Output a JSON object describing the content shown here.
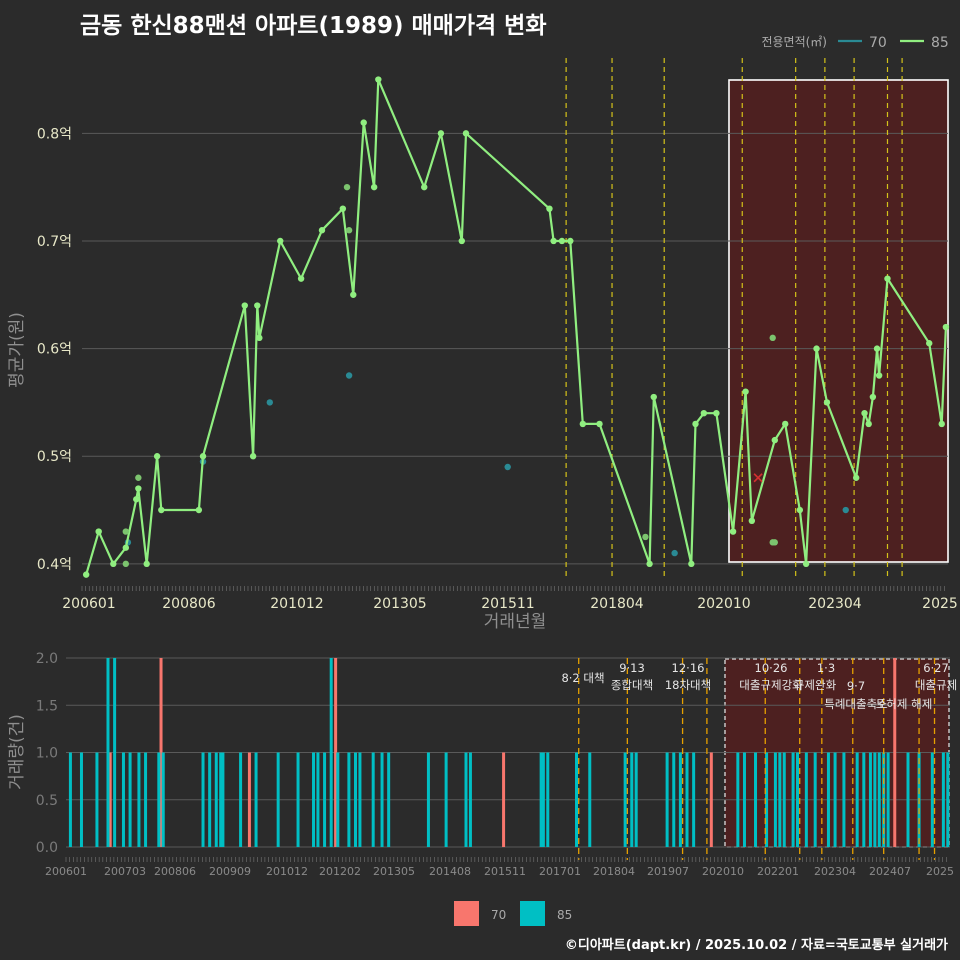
{
  "header": {
    "title": "금동 한신88맨션 아파트(1989) 매매가격 변화",
    "credit": "©디아파트(dapt.kr) / 2025.10.02 / 자료=국토교통부 실거래가"
  },
  "colors": {
    "s70": "#2a8a94",
    "s85": "#90ee80",
    "bar70": "#f8766d",
    "bar85": "#00bfc4",
    "policy": "#d4c21a"
  },
  "chart_data": [
    {
      "type": "line",
      "title": "금동 한신88맨션 아파트(1989) 매매가격 변화",
      "xlabel": "거래년월",
      "ylabel": "평균가(원)",
      "ylim": [
        0.385,
        0.87
      ],
      "x_tick_labels": [
        "200601",
        "200806",
        "201012",
        "201305",
        "201511",
        "201804",
        "202010",
        "202304",
        "2025"
      ],
      "y_tick_labels": [
        "0.4억",
        "0.5억",
        "0.6억",
        "0.7억",
        "0.8억"
      ],
      "y_ticks": [
        0.4,
        0.5,
        0.6,
        0.7,
        0.8
      ],
      "legend_title": "전용면적(㎡)",
      "legend": [
        "70",
        "85"
      ],
      "highlight_box": {
        "x_from": 2020.85,
        "x_to": 2025.5
      },
      "marker_x": {
        "x": 2022.2,
        "y": 0.48
      },
      "policy_lines": [
        2017.6,
        2018.7,
        2019.95,
        2021.82,
        2023.1,
        2023.8,
        2024.5,
        2025.3,
        2025.65
      ],
      "series": [
        {
          "name": "70",
          "points": [
            [
              2007.1,
              0.42
            ],
            [
              2008.9,
              0.495
            ],
            [
              2010.5,
              0.55
            ],
            [
              2012.4,
              0.575
            ],
            [
              2016.2,
              0.49
            ],
            [
              2020.2,
              0.41
            ],
            [
              2024.3,
              0.45
            ]
          ]
        },
        {
          "name": "85",
          "line": [
            [
              2006.1,
              0.39
            ],
            [
              2006.4,
              0.43
            ],
            [
              2006.75,
              0.4
            ],
            [
              2007.05,
              0.415
            ],
            [
              2007.3,
              0.46
            ],
            [
              2007.35,
              0.47
            ],
            [
              2007.55,
              0.4
            ],
            [
              2007.8,
              0.5
            ],
            [
              2007.9,
              0.45
            ],
            [
              2008.8,
              0.45
            ],
            [
              2008.9,
              0.5
            ],
            [
              2009.9,
              0.64
            ],
            [
              2010.1,
              0.5
            ],
            [
              2010.2,
              0.64
            ],
            [
              2010.25,
              0.61
            ],
            [
              2010.75,
              0.7
            ],
            [
              2011.25,
              0.665
            ],
            [
              2011.75,
              0.71
            ],
            [
              2012.25,
              0.73
            ],
            [
              2012.5,
              0.65
            ],
            [
              2012.75,
              0.81
            ],
            [
              2013.0,
              0.75
            ],
            [
              2013.1,
              0.85
            ],
            [
              2014.2,
              0.75
            ],
            [
              2014.6,
              0.8
            ],
            [
              2015.1,
              0.7
            ],
            [
              2015.2,
              0.8
            ],
            [
              2017.2,
              0.73
            ],
            [
              2017.3,
              0.7
            ],
            [
              2017.5,
              0.7
            ],
            [
              2017.7,
              0.7
            ],
            [
              2018.0,
              0.53
            ],
            [
              2018.4,
              0.53
            ],
            [
              2019.6,
              0.4
            ],
            [
              2019.7,
              0.555
            ],
            [
              2020.6,
              0.4
            ],
            [
              2020.7,
              0.53
            ],
            [
              2020.9,
              0.54
            ],
            [
              2021.2,
              0.54
            ],
            [
              2021.6,
              0.43
            ],
            [
              2021.9,
              0.56
            ],
            [
              2022.05,
              0.44
            ],
            [
              2022.6,
              0.515
            ],
            [
              2022.85,
              0.53
            ],
            [
              2023.2,
              0.45
            ],
            [
              2023.35,
              0.4
            ],
            [
              2023.6,
              0.6
            ],
            [
              2023.85,
              0.55
            ],
            [
              2024.55,
              0.48
            ],
            [
              2024.75,
              0.54
            ],
            [
              2024.85,
              0.53
            ],
            [
              2024.95,
              0.555
            ],
            [
              2025.05,
              0.6
            ],
            [
              2025.1,
              0.575
            ],
            [
              2025.3,
              0.665
            ],
            [
              2026.3,
              0.605
            ],
            [
              2026.6,
              0.53
            ],
            [
              2026.7,
              0.62
            ]
          ],
          "extra_points": [
            [
              2007.05,
              0.43
            ],
            [
              2007.05,
              0.4
            ],
            [
              2007.35,
              0.48
            ],
            [
              2012.35,
              0.75
            ],
            [
              2012.4,
              0.71
            ],
            [
              2019.5,
              0.425
            ],
            [
              2022.55,
              0.61
            ],
            [
              2022.55,
              0.42
            ],
            [
              2022.6,
              0.42
            ]
          ]
        }
      ]
    },
    {
      "type": "bar",
      "ylabel": "거래량(건)",
      "ylim": [
        0,
        2.0
      ],
      "y_ticks": [
        0,
        0.5,
        1.0,
        1.5,
        2.0
      ],
      "y_tick_labels": [
        "0.0",
        "0.5",
        "1.0",
        "1.5",
        "2.0"
      ],
      "x_tick_labels": [
        "200601",
        "200703",
        "200806",
        "200909",
        "201012",
        "201202",
        "201305",
        "201408",
        "201511",
        "201701",
        "201804",
        "201907",
        "202010",
        "202201",
        "202304",
        "202407",
        "2025"
      ],
      "legend": [
        "70",
        "85"
      ],
      "highlight_box": {
        "x_from": 2020.95,
        "x_to": 2025.95
      },
      "series": [
        {
          "name": "70",
          "bars": [
            [
              2007.0,
              1
            ],
            [
              2008.15,
              2
            ],
            [
              2010.15,
              1
            ],
            [
              2012.1,
              2
            ],
            [
              2015.9,
              1
            ],
            [
              2020.6,
              1
            ],
            [
              2024.75,
              2
            ]
          ]
        },
        {
          "name": "85",
          "bars": [
            [
              2006.1,
              1
            ],
            [
              2006.35,
              1
            ],
            [
              2006.7,
              1
            ],
            [
              2006.95,
              2
            ],
            [
              2007.1,
              2
            ],
            [
              2007.3,
              1
            ],
            [
              2007.45,
              1
            ],
            [
              2007.65,
              1
            ],
            [
              2007.8,
              1
            ],
            [
              2008.1,
              1
            ],
            [
              2008.2,
              1
            ],
            [
              2009.1,
              1
            ],
            [
              2009.25,
              1
            ],
            [
              2009.4,
              1
            ],
            [
              2009.5,
              1
            ],
            [
              2009.55,
              1
            ],
            [
              2009.95,
              1
            ],
            [
              2010.3,
              1
            ],
            [
              2010.8,
              1
            ],
            [
              2011.25,
              1
            ],
            [
              2011.6,
              1
            ],
            [
              2011.7,
              1
            ],
            [
              2011.85,
              1
            ],
            [
              2012.0,
              2
            ],
            [
              2012.15,
              1
            ],
            [
              2012.4,
              1
            ],
            [
              2012.55,
              1
            ],
            [
              2012.65,
              1
            ],
            [
              2012.95,
              1
            ],
            [
              2013.15,
              1
            ],
            [
              2013.3,
              1
            ],
            [
              2014.2,
              1
            ],
            [
              2014.6,
              1
            ],
            [
              2015.05,
              1
            ],
            [
              2015.15,
              1
            ],
            [
              2016.75,
              1
            ],
            [
              2016.8,
              1
            ],
            [
              2016.9,
              1
            ],
            [
              2017.55,
              1
            ],
            [
              2017.85,
              1
            ],
            [
              2018.65,
              1
            ],
            [
              2018.8,
              1
            ],
            [
              2018.9,
              1
            ],
            [
              2019.6,
              1
            ],
            [
              2019.75,
              1
            ],
            [
              2019.9,
              1
            ],
            [
              2020.05,
              1
            ],
            [
              2020.2,
              1
            ],
            [
              2021.2,
              1
            ],
            [
              2021.35,
              1
            ],
            [
              2021.6,
              1
            ],
            [
              2021.85,
              1
            ],
            [
              2022.05,
              1
            ],
            [
              2022.15,
              1
            ],
            [
              2022.25,
              1
            ],
            [
              2022.45,
              1
            ],
            [
              2022.55,
              1
            ],
            [
              2022.75,
              1
            ],
            [
              2022.95,
              1
            ],
            [
              2023.25,
              1
            ],
            [
              2023.4,
              1
            ],
            [
              2023.6,
              1
            ],
            [
              2023.9,
              1
            ],
            [
              2024.05,
              1
            ],
            [
              2024.2,
              1
            ],
            [
              2024.3,
              1
            ],
            [
              2024.4,
              1
            ],
            [
              2024.5,
              1
            ],
            [
              2024.6,
              1
            ],
            [
              2025.05,
              1
            ],
            [
              2025.3,
              1
            ],
            [
              2025.6,
              1
            ],
            [
              2025.85,
              1
            ],
            [
              2025.95,
              1
            ]
          ]
        }
      ],
      "annotations": [
        {
          "x": 2017.6,
          "date": "8·2 대책",
          "label": ""
        },
        {
          "x": 2018.7,
          "date": "9·13",
          "label": "종합대책"
        },
        {
          "x": 2019.95,
          "date": "12·16",
          "label": "18차대책"
        },
        {
          "x": 2021.82,
          "date": "10·26",
          "label": "대출규제강화"
        },
        {
          "x": 2023.1,
          "date": "1·3",
          "label": "규제완화"
        },
        {
          "x": 2023.8,
          "date": "9·7",
          "label": "특례대출축소"
        },
        {
          "x": 2024.8,
          "date": "",
          "label": "토허제 해제"
        },
        {
          "x": 2025.6,
          "date": "6·27",
          "label": "대출규제"
        }
      ],
      "policy_lines": [
        2017.6,
        2018.7,
        2019.95,
        2020.5,
        2021.82,
        2022.6,
        2023.1,
        2023.8,
        2024.5,
        2025.3,
        2025.65
      ]
    }
  ]
}
